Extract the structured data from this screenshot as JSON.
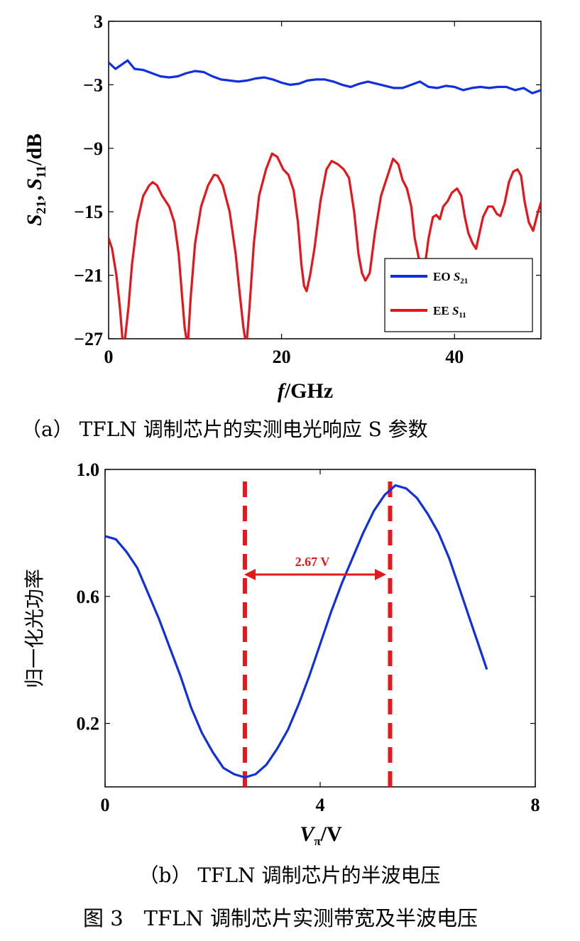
{
  "chart_data": [
    {
      "type": "line",
      "xlabel": "f/GHz",
      "xlabel_italic_part": "f",
      "xlabel_rest": "/GHz",
      "ylabel": "S21, S11/dB",
      "xlim": [
        0,
        50
      ],
      "ylim": [
        -27,
        3
      ],
      "xticks": [
        "0",
        "20",
        "40"
      ],
      "xtick_values": [
        0,
        20,
        40
      ],
      "yticks": [
        "3",
        "−3",
        "−9",
        "−15",
        "−21",
        "−27"
      ],
      "ytick_values": [
        3,
        -3,
        -9,
        -15,
        -21,
        -27
      ],
      "legend_position": "bottom-right",
      "caption": "（a） TFLN 调制芯片的实测电光响应 S 参数",
      "series": [
        {
          "name": "EO S21",
          "name_prefix": "EO ",
          "name_symbol": "S",
          "name_sub": "21",
          "color": "#1030e0",
          "x": [
            0,
            0.8,
            1.5,
            2.2,
            3,
            4,
            5,
            6,
            7,
            8,
            9,
            10,
            11,
            12,
            13,
            14,
            15,
            16,
            17,
            18,
            19,
            20,
            21,
            22,
            23,
            24,
            25,
            26,
            27,
            28,
            29,
            30,
            31,
            32,
            33,
            34,
            35,
            36,
            37,
            38,
            39,
            40,
            41,
            42,
            43,
            44,
            45,
            46,
            47,
            48,
            49,
            50
          ],
          "y": [
            -0.9,
            -1.5,
            -1.1,
            -0.7,
            -1.5,
            -1.6,
            -1.9,
            -2.2,
            -2.3,
            -2.2,
            -1.9,
            -1.7,
            -1.8,
            -2.2,
            -2.5,
            -2.6,
            -2.7,
            -2.6,
            -2.4,
            -2.3,
            -2.5,
            -2.8,
            -3.0,
            -2.9,
            -2.6,
            -2.5,
            -2.5,
            -2.7,
            -3.0,
            -3.2,
            -2.9,
            -2.7,
            -2.9,
            -3.1,
            -3.3,
            -3.3,
            -3.0,
            -2.7,
            -3.2,
            -3.3,
            -3.1,
            -3.2,
            -3.5,
            -3.3,
            -3.2,
            -3.3,
            -3.2,
            -3.2,
            -3.5,
            -3.3,
            -3.8,
            -3.5
          ]
        },
        {
          "name": "EE S11",
          "name_prefix": "EE ",
          "name_symbol": "S",
          "name_sub": "11",
          "color": "#e8141c",
          "x": [
            0,
            0.4,
            0.9,
            1.3,
            1.6,
            1.9,
            2.3,
            2.7,
            3.3,
            4,
            4.7,
            5.1,
            5.6,
            6.2,
            7,
            7.6,
            8.1,
            8.5,
            8.8,
            9.0,
            9.2,
            9.5,
            10,
            10.7,
            11.5,
            12.2,
            12.6,
            13.2,
            14,
            14.7,
            15.2,
            15.6,
            15.8,
            16.0,
            16.3,
            16.8,
            17.4,
            18.2,
            18.9,
            19.5,
            20.2,
            20.8,
            21.4,
            21.9,
            22.3,
            22.6,
            22.9,
            23.3,
            23.8,
            24.5,
            25.2,
            25.8,
            26.5,
            27.2,
            27.8,
            28.4,
            28.9,
            29.3,
            29.7,
            30.2,
            30.8,
            31.5,
            32.3,
            32.9,
            33.5,
            34.0,
            34.5,
            35.0,
            35.4,
            35.9,
            36.3,
            36.6,
            37.0,
            37.5,
            37.9,
            38.3,
            38.7,
            39.2,
            39.7,
            40.3,
            40.8,
            41.2,
            41.6,
            42.1,
            42.5,
            42.9,
            43.3,
            43.9,
            44.4,
            44.9,
            45.3,
            45.8,
            46.3,
            46.8,
            47.3,
            47.7,
            48.1,
            48.6,
            49.1,
            49.6,
            50
          ],
          "y": [
            -17.5,
            -18.5,
            -21,
            -24,
            -27,
            -27,
            -24,
            -20,
            -16,
            -13.5,
            -12.5,
            -12.2,
            -12.5,
            -13.5,
            -14.5,
            -16,
            -19,
            -23,
            -26,
            -27,
            -27,
            -23,
            -18,
            -14.5,
            -12.5,
            -11.5,
            -11.6,
            -12.5,
            -15,
            -19,
            -23,
            -26,
            -27,
            -27,
            -24,
            -18,
            -13.5,
            -11,
            -9.5,
            -9.8,
            -11,
            -11.5,
            -13,
            -16,
            -20,
            -22,
            -22.5,
            -21,
            -18.5,
            -14,
            -11,
            -10.2,
            -10.5,
            -11,
            -11.8,
            -15,
            -19,
            -20.8,
            -21.5,
            -20.8,
            -17,
            -13.5,
            -11.5,
            -10.0,
            -10.5,
            -12,
            -12.8,
            -14.5,
            -17.5,
            -19.5,
            -20.5,
            -20,
            -17.5,
            -15.5,
            -15.3,
            -15.7,
            -14.5,
            -14,
            -13.2,
            -12.8,
            -13.5,
            -15.5,
            -17,
            -18,
            -18.5,
            -17,
            -15.5,
            -14.5,
            -14.5,
            -15.2,
            -15.4,
            -14.2,
            -12.2,
            -11.2,
            -11.0,
            -11.6,
            -14,
            -16,
            -16.8,
            -15.2,
            -14.1
          ]
        }
      ]
    },
    {
      "type": "line",
      "xlabel": "Vπ/V",
      "xlabel_symbol": "V",
      "xlabel_sub": "π",
      "xlabel_rest": "/V",
      "ylabel": "归一化光功率",
      "xlim": [
        0,
        8
      ],
      "ylim": [
        0,
        1.0
      ],
      "xticks": [
        "0",
        "4",
        "8"
      ],
      "xtick_values": [
        0,
        4,
        8
      ],
      "yticks": [
        "1.0",
        "0.6",
        "0.2"
      ],
      "ytick_values": [
        1.0,
        0.6,
        0.2
      ],
      "vlines": [
        2.6,
        5.3
      ],
      "annotation": "2.67 V",
      "caption": "（b） TFLN 调制芯片的半波电压",
      "series": [
        {
          "color": "#1030e0",
          "x": [
            0,
            0.2,
            0.4,
            0.6,
            0.8,
            1.0,
            1.2,
            1.4,
            1.6,
            1.8,
            2.0,
            2.2,
            2.4,
            2.6,
            2.8,
            3.0,
            3.2,
            3.4,
            3.6,
            3.8,
            4.0,
            4.2,
            4.4,
            4.6,
            4.8,
            5.0,
            5.2,
            5.4,
            5.6,
            5.8,
            6.0,
            6.2,
            6.4,
            6.6,
            6.8,
            7.0,
            7.1
          ],
          "y": [
            0.79,
            0.78,
            0.74,
            0.69,
            0.61,
            0.53,
            0.44,
            0.35,
            0.25,
            0.17,
            0.11,
            0.06,
            0.04,
            0.03,
            0.04,
            0.07,
            0.12,
            0.18,
            0.26,
            0.35,
            0.45,
            0.55,
            0.64,
            0.72,
            0.8,
            0.87,
            0.92,
            0.95,
            0.94,
            0.91,
            0.86,
            0.8,
            0.72,
            0.62,
            0.52,
            0.42,
            0.37
          ]
        }
      ]
    }
  ],
  "figure_caption": "图 3　TFLN 调制芯片实测带宽及半波电压"
}
